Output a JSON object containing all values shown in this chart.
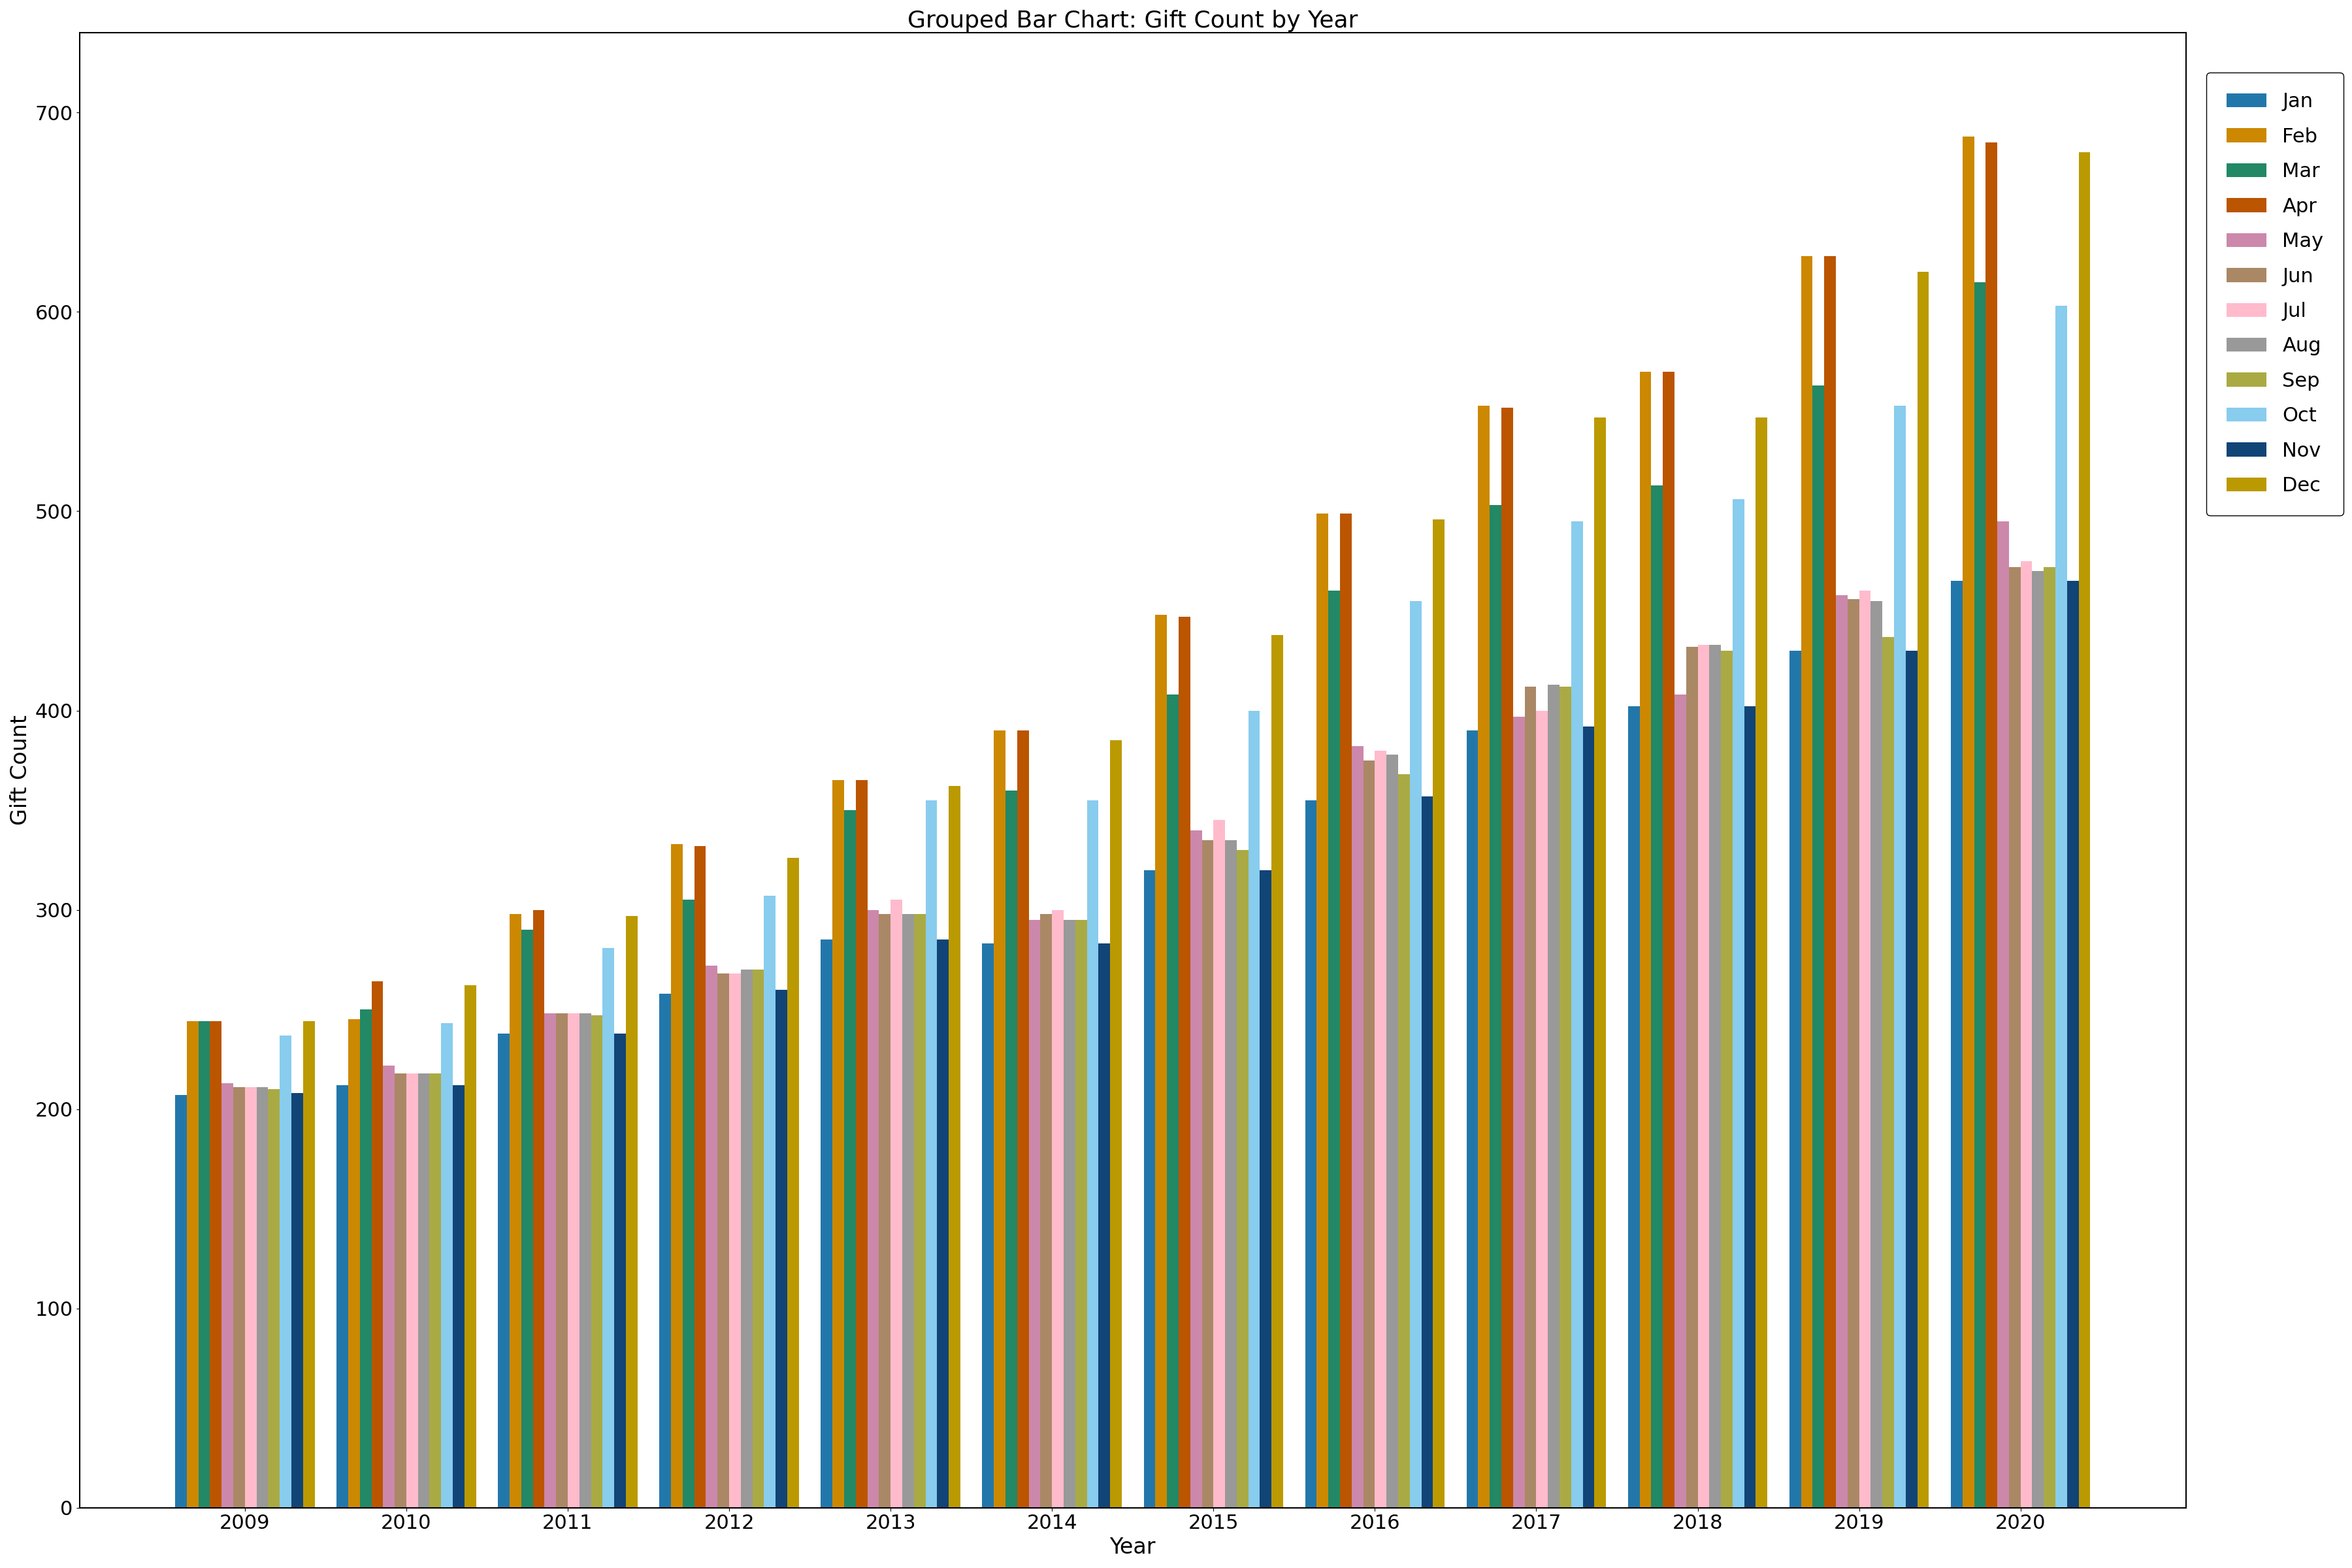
{
  "title": "Grouped Bar Chart: Gift Count by Year",
  "xlabel": "Year",
  "ylabel": "Gift Count",
  "ylim": [
    0,
    740
  ],
  "years": [
    2009,
    2010,
    2011,
    2012,
    2013,
    2014,
    2015,
    2016,
    2017,
    2018,
    2019,
    2020
  ],
  "months": [
    "Jan",
    "Feb",
    "Mar",
    "Apr",
    "May",
    "Jun",
    "Jul",
    "Aug",
    "Sep",
    "Oct",
    "Nov",
    "Dec"
  ],
  "colors": {
    "Jan": "#2277aa",
    "Feb": "#cc8800",
    "Mar": "#228866",
    "Apr": "#bb5500",
    "May": "#cc88aa",
    "Jun": "#aa8866",
    "Jul": "#ffbbcc",
    "Aug": "#999999",
    "Sep": "#aaaa44",
    "Oct": "#88ccee",
    "Nov": "#114477",
    "Dec": "#bb9900"
  },
  "data": {
    "Jan": [
      207,
      212,
      238,
      258,
      285,
      283,
      320,
      355,
      390,
      402,
      430,
      465
    ],
    "Feb": [
      244,
      245,
      298,
      333,
      365,
      390,
      448,
      499,
      553,
      570,
      628,
      688
    ],
    "Mar": [
      244,
      250,
      290,
      305,
      350,
      360,
      408,
      460,
      503,
      513,
      563,
      615
    ],
    "Apr": [
      244,
      264,
      300,
      332,
      365,
      390,
      447,
      499,
      552,
      570,
      628,
      685
    ],
    "May": [
      213,
      222,
      248,
      272,
      300,
      295,
      340,
      382,
      397,
      408,
      458,
      495
    ],
    "Jun": [
      211,
      218,
      248,
      268,
      298,
      298,
      335,
      375,
      412,
      432,
      456,
      472
    ],
    "Jul": [
      211,
      218,
      248,
      268,
      305,
      300,
      345,
      380,
      400,
      433,
      460,
      475
    ],
    "Aug": [
      211,
      218,
      248,
      270,
      298,
      295,
      335,
      378,
      413,
      433,
      455,
      470
    ],
    "Sep": [
      210,
      218,
      247,
      270,
      298,
      295,
      330,
      368,
      412,
      430,
      437,
      472
    ],
    "Oct": [
      237,
      243,
      281,
      307,
      355,
      355,
      400,
      455,
      495,
      506,
      553,
      603
    ],
    "Nov": [
      208,
      212,
      238,
      260,
      285,
      283,
      320,
      357,
      392,
      402,
      430,
      465
    ],
    "Dec": [
      244,
      262,
      297,
      326,
      362,
      385,
      438,
      496,
      547,
      547,
      620,
      680
    ]
  }
}
